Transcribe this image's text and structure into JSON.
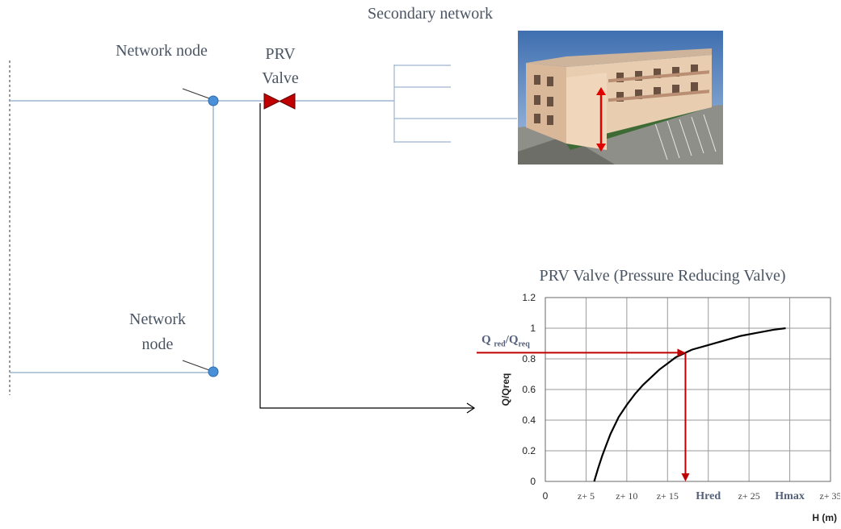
{
  "labels": {
    "secondary_network": "Secondary network",
    "network_node_top": "Network node",
    "prv_line1": "PRV",
    "prv_line2": "Valve",
    "network_node_bottom_line1": "Network",
    "network_node_bottom_line2": "node"
  },
  "colors": {
    "pipe": "#9db5cf",
    "node": "#4a90d9",
    "valve": "#c00000",
    "arrow": "#c00000",
    "curve": "#000000"
  },
  "chart_data": {
    "type": "line",
    "title": "PRV Valve (Pressure Reducing Valve)",
    "xlabel": "H (m)",
    "ylabel": "Q/Qreq",
    "x_ticks": [
      "0",
      "z+ 5",
      "z+ 10",
      "z+ 15",
      "Hred",
      "z+ 25",
      "Hmax",
      "z+ 35"
    ],
    "y_ticks": [
      "0",
      "0.2",
      "0.4",
      "0.6",
      "0.8",
      "1",
      "1.2"
    ],
    "ylim": [
      0,
      1.2
    ],
    "xlim": [
      0,
      35
    ],
    "grid": true,
    "annotation": {
      "q_label_main": "Q",
      "q_label_sub1": "red",
      "q_label_sep": "/Q",
      "q_label_sub2": "req",
      "hred_x": 17.2,
      "qred_y": 0.84
    },
    "series": [
      {
        "x": [
          6.0,
          6.5,
          7.0,
          7.5,
          8.0,
          9.0,
          10.0,
          11.0,
          12.0,
          13.0,
          14.0,
          15.0,
          16.0,
          17.2,
          18.0,
          20.0,
          22.0,
          24.0,
          26.0,
          28.0,
          29.5
        ],
        "y": [
          0.0,
          0.09,
          0.17,
          0.24,
          0.31,
          0.42,
          0.5,
          0.57,
          0.63,
          0.68,
          0.73,
          0.77,
          0.81,
          0.84,
          0.86,
          0.89,
          0.92,
          0.95,
          0.97,
          0.99,
          1.0
        ]
      }
    ]
  }
}
